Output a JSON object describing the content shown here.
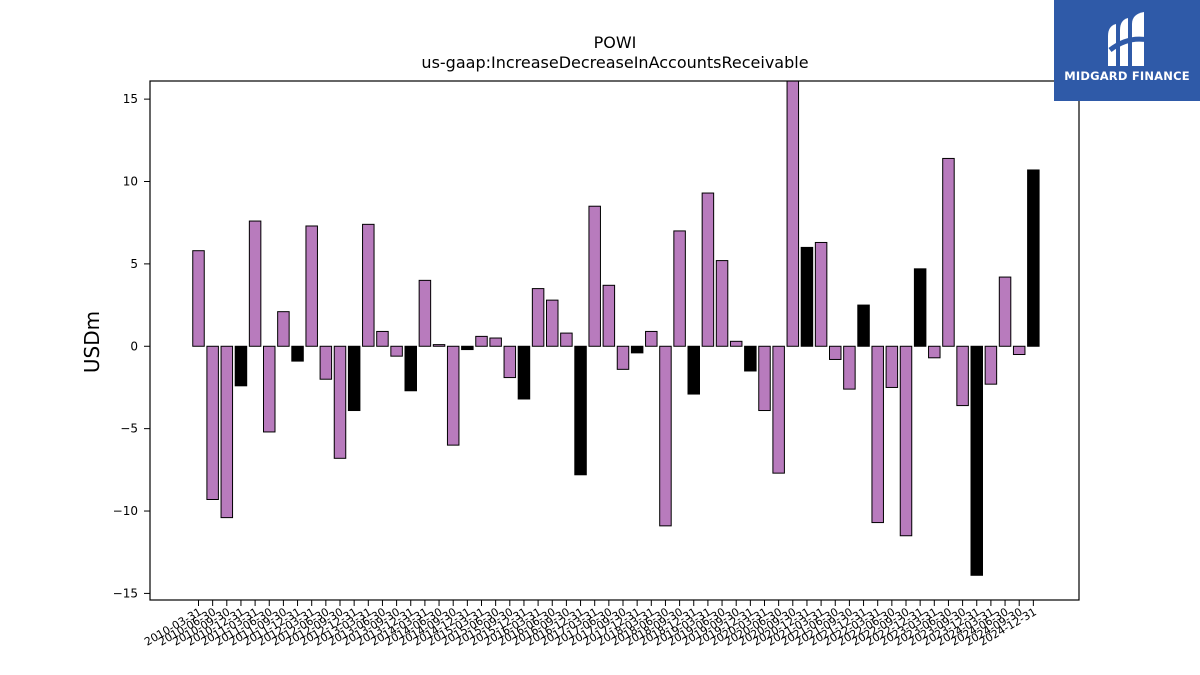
{
  "brand": {
    "name": "MIDGARD FINANCE",
    "icon": "midgard-logo-icon",
    "background": "#2f5aa8"
  },
  "colors": {
    "positive_bar": "#b87bbd",
    "highlight_bar": "#000000",
    "axis": "#000000"
  },
  "chart_data": {
    "type": "bar",
    "title": "POWI",
    "subtitle": "us-gaap:IncreaseDecreaseInAccountsReceivable",
    "xlabel": "",
    "ylabel": "USDm",
    "ylim": [
      -15.4,
      16.1
    ],
    "yticks": [
      -15,
      -10,
      -5,
      0,
      5,
      10,
      15
    ],
    "ytick_labels": [
      "−15",
      "−10",
      "−5",
      "0",
      "5",
      "10",
      "15"
    ],
    "grid": false,
    "categories": [
      "2010-03-31",
      "2010-06-30",
      "2010-09-30",
      "2010-12-31",
      "2011-03-31",
      "2011-06-30",
      "2011-09-30",
      "2011-12-31",
      "2012-03-31",
      "2012-06-30",
      "2012-09-30",
      "2012-12-31",
      "2013-03-31",
      "2013-06-30",
      "2013-09-30",
      "2013-12-31",
      "2014-03-31",
      "2014-06-30",
      "2014-09-30",
      "2014-12-31",
      "2015-03-31",
      "2015-06-30",
      "2015-09-30",
      "2015-12-31",
      "2016-03-31",
      "2016-06-30",
      "2016-09-30",
      "2016-12-31",
      "2017-03-31",
      "2017-06-30",
      "2017-09-30",
      "2017-12-31",
      "2018-03-31",
      "2018-06-30",
      "2018-09-30",
      "2018-12-31",
      "2019-03-31",
      "2019-06-30",
      "2019-09-30",
      "2019-12-31",
      "2020-03-31",
      "2020-06-30",
      "2020-09-30",
      "2020-12-31",
      "2021-03-31",
      "2021-06-30",
      "2021-09-30",
      "2021-12-31",
      "2022-03-31",
      "2022-06-30",
      "2022-09-30",
      "2022-12-31",
      "2023-03-31",
      "2023-06-30",
      "2023-09-30",
      "2023-12-31",
      "2024-03-31",
      "2024-06-30",
      "2024-09-30",
      "2024-12-31"
    ],
    "values": [
      5.8,
      -9.3,
      -10.4,
      -2.4,
      7.6,
      -5.2,
      2.1,
      -0.9,
      7.3,
      -2.0,
      -6.8,
      -3.9,
      7.4,
      0.9,
      -0.6,
      -2.7,
      4.0,
      0.1,
      -6.0,
      -0.2,
      0.6,
      0.5,
      -1.9,
      -3.2,
      3.5,
      2.8,
      0.8,
      -7.8,
      8.5,
      3.7,
      -1.4,
      -0.4,
      0.9,
      -10.9,
      7.0,
      -2.9,
      9.3,
      5.2,
      0.3,
      -1.5,
      -3.9,
      -7.7,
      16.5,
      6.0,
      6.3,
      -0.8,
      -2.6,
      2.5,
      -10.7,
      -2.5,
      -11.5,
      4.7,
      -0.7,
      11.4,
      -3.6,
      -13.9,
      -2.3,
      4.2,
      -0.5,
      10.7
    ],
    "highlight_indices": [
      3,
      7,
      11,
      15,
      19,
      23,
      27,
      31,
      35,
      39,
      43,
      47,
      51,
      55,
      59
    ]
  }
}
